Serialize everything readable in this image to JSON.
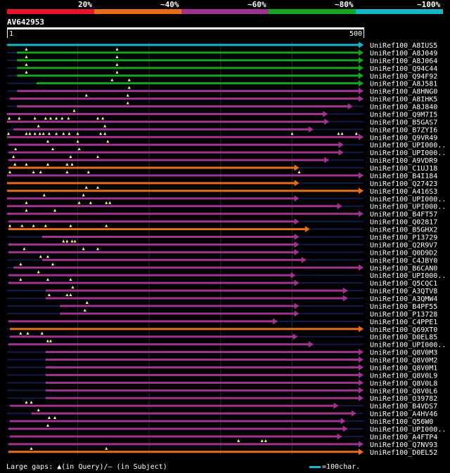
{
  "query": {
    "title": "AV642953",
    "start_label": "1",
    "end_label": "500"
  },
  "identity_legend": [
    {
      "label": "20%",
      "color": "#e5152e"
    },
    {
      "label": "~40%",
      "color": "#e56f18"
    },
    {
      "label": "~60%",
      "color": "#a03390"
    },
    {
      "label": "~80%",
      "color": "#16a51e"
    },
    {
      "label": "~100%",
      "color": "#17b7c7"
    }
  ],
  "footer": {
    "gaps_text": "Large gaps: ▲(in Query)/— (in Subject)",
    "scale_text": "=100char.",
    "scale_color": "#17b7c7"
  },
  "chart_data": {
    "type": "alignment-overview",
    "query_length": 500,
    "x_range": [
      1,
      500
    ],
    "hits": [
      {
        "name": "UniRef100_A8IUS5",
        "identity": "~100%",
        "start": 1,
        "end": 500,
        "marks": []
      },
      {
        "name": "UniRef100_A8J049",
        "identity": "~80%",
        "start": 15,
        "end": 500,
        "marks": [
          28,
          155
        ]
      },
      {
        "name": "UniRef100_A8J064",
        "identity": "~80%",
        "start": 15,
        "end": 500,
        "marks": [
          28,
          155
        ]
      },
      {
        "name": "UniRef100_Q94C44",
        "identity": "~80%",
        "start": 15,
        "end": 500,
        "marks": [
          28,
          155
        ]
      },
      {
        "name": "UniRef100_Q94F92",
        "identity": "~80%",
        "start": 15,
        "end": 500,
        "marks": [
          28,
          155
        ]
      },
      {
        "name": "UniRef100_A8J581",
        "identity": "~80%",
        "start": 42,
        "end": 500,
        "marks": [
          148,
          172
        ]
      },
      {
        "name": "UniRef100_A8HNG0",
        "identity": "~60%",
        "start": 15,
        "end": 500,
        "marks": [
          172
        ]
      },
      {
        "name": "UniRef100_A8IHK5",
        "identity": "~60%",
        "start": 5,
        "end": 500,
        "marks": [
          112,
          170
        ]
      },
      {
        "name": "UniRef100_A8J840",
        "identity": "~60%",
        "start": 15,
        "end": 485,
        "marks": [
          170
        ]
      },
      {
        "name": "UniRef100_Q9M7I5",
        "identity": "~60%",
        "start": 1,
        "end": 450,
        "marks": [
          95
        ]
      },
      {
        "name": "UniRef100_B5GAS7",
        "identity": "~60%",
        "start": 1,
        "end": 452,
        "marks": [
          4,
          18,
          40,
          55,
          62,
          70,
          78,
          87,
          128,
          135
        ]
      },
      {
        "name": "UniRef100_B7ZYI6",
        "identity": "~60%",
        "start": 10,
        "end": 430,
        "marks": [
          45,
          138
        ]
      },
      {
        "name": "UniRef100_Q9VR49",
        "identity": "~60%",
        "start": 1,
        "end": 500,
        "marks": [
          3,
          28,
          33,
          40,
          47,
          52,
          60,
          70,
          80,
          88,
          100,
          132,
          138,
          400,
          465,
          470,
          490
        ]
      },
      {
        "name": "UniRef100_UPI000..",
        "identity": "~60%",
        "start": 3,
        "end": 472,
        "marks": [
          58,
          100,
          142
        ]
      },
      {
        "name": "UniRef100_UPI000..",
        "identity": "~60%",
        "start": 3,
        "end": 472,
        "marks": [
          13,
          65,
          102
        ]
      },
      {
        "name": "UniRef100_A9VDR9",
        "identity": "~60%",
        "start": 3,
        "end": 452,
        "marks": [
          10,
          90,
          128
        ]
      },
      {
        "name": "UniRef100_C1UJ18",
        "identity": "~40%",
        "start": 3,
        "end": 410,
        "marks": [
          12,
          28,
          58,
          85,
          92
        ]
      },
      {
        "name": "UniRef100_B4I184",
        "identity": "~60%",
        "start": 1,
        "end": 500,
        "marks": [
          5,
          38,
          48,
          85,
          115,
          410
        ]
      },
      {
        "name": "UniRef100_Q27423",
        "identity": "~40%",
        "start": 1,
        "end": 410,
        "marks": []
      },
      {
        "name": "UniRef100_A416S3",
        "identity": "~40%",
        "start": 1,
        "end": 500,
        "marks": [
          112,
          128
        ]
      },
      {
        "name": "UniRef100_UPI000..",
        "identity": "~60%",
        "start": 1,
        "end": 410,
        "marks": [
          53,
          108
        ]
      },
      {
        "name": "UniRef100_UPI000..",
        "identity": "~60%",
        "start": 1,
        "end": 470,
        "marks": [
          28,
          102,
          118,
          140,
          145
        ]
      },
      {
        "name": "UniRef100_B4FT57",
        "identity": "~60%",
        "start": 1,
        "end": 500,
        "marks": [
          28,
          68
        ]
      },
      {
        "name": "UniRef100_Q02817",
        "identity": "~60%",
        "start": 3,
        "end": 410,
        "marks": []
      },
      {
        "name": "UniRef100_B5GHX2",
        "identity": "~40%",
        "start": 3,
        "end": 425,
        "marks": [
          5,
          22,
          38,
          55,
          90,
          140
        ]
      },
      {
        "name": "UniRef100_P13729",
        "identity": "~60%",
        "start": 50,
        "end": 410,
        "marks": []
      },
      {
        "name": "UniRef100_Q2R9V7",
        "identity": "~60%",
        "start": 3,
        "end": 410,
        "marks": [
          80,
          85,
          92,
          96
        ]
      },
      {
        "name": "UniRef100_Q0D9D2",
        "identity": "~60%",
        "start": 3,
        "end": 410,
        "marks": [
          25,
          108,
          128
        ]
      },
      {
        "name": "UniRef100_C4JBY0",
        "identity": "~60%",
        "start": 50,
        "end": 420,
        "marks": [
          48,
          58
        ]
      },
      {
        "name": "UniRef100_B6CAN0",
        "identity": "~60%",
        "start": 10,
        "end": 500,
        "marks": [
          20,
          65
        ]
      },
      {
        "name": "UniRef100_UPI000..",
        "identity": "~60%",
        "start": 3,
        "end": 405,
        "marks": [
          45
        ]
      },
      {
        "name": "UniRef100_Q5CQC1",
        "identity": "~60%",
        "start": 3,
        "end": 410,
        "marks": [
          20,
          58,
          90
        ]
      },
      {
        "name": "UniRef100_A3QTV8",
        "identity": "~60%",
        "start": 55,
        "end": 478,
        "marks": [
          93
        ]
      },
      {
        "name": "UniRef100_A3QMW4",
        "identity": "~60%",
        "start": 55,
        "end": 478,
        "marks": [
          60,
          85,
          90
        ]
      },
      {
        "name": "UniRef100_B4PF55",
        "identity": "~60%",
        "start": 75,
        "end": 410,
        "marks": [
          113
        ]
      },
      {
        "name": "UniRef100_P13728",
        "identity": "~60%",
        "start": 75,
        "end": 410,
        "marks": [
          110
        ]
      },
      {
        "name": "UniRef100_C4PPE1",
        "identity": "~60%",
        "start": 3,
        "end": 380,
        "marks": []
      },
      {
        "name": "UniRef100_Q69XT0",
        "identity": "~40%",
        "start": 5,
        "end": 500,
        "marks": []
      },
      {
        "name": "UniRef100_D0EL85",
        "identity": "~60%",
        "start": 5,
        "end": 408,
        "marks": [
          20,
          30,
          50
        ]
      },
      {
        "name": "UniRef100_UPI000..",
        "identity": "~60%",
        "start": 3,
        "end": 430,
        "marks": [
          58,
          62
        ]
      },
      {
        "name": "UniRef100_Q8V0M3",
        "identity": "~60%",
        "start": 55,
        "end": 500,
        "marks": []
      },
      {
        "name": "UniRef100_Q8V0M2",
        "identity": "~60%",
        "start": 55,
        "end": 500,
        "marks": []
      },
      {
        "name": "UniRef100_Q8V0M1",
        "identity": "~60%",
        "start": 55,
        "end": 500,
        "marks": []
      },
      {
        "name": "UniRef100_Q8V0L9",
        "identity": "~60%",
        "start": 55,
        "end": 500,
        "marks": []
      },
      {
        "name": "UniRef100_Q8V0L8",
        "identity": "~60%",
        "start": 55,
        "end": 500,
        "marks": []
      },
      {
        "name": "UniRef100_Q8V0L6",
        "identity": "~60%",
        "start": 55,
        "end": 500,
        "marks": []
      },
      {
        "name": "UniRef100_O39782",
        "identity": "~60%",
        "start": 55,
        "end": 500,
        "marks": []
      },
      {
        "name": "UniRef100_B4VDS7",
        "identity": "~60%",
        "start": 5,
        "end": 465,
        "marks": [
          28,
          35
        ]
      },
      {
        "name": "UniRef100_A4HV46",
        "identity": "~60%",
        "start": 35,
        "end": 490,
        "marks": [
          45
        ]
      },
      {
        "name": "UniRef100_Q56W0",
        "identity": "~60%",
        "start": 5,
        "end": 475,
        "marks": [
          60,
          68
        ]
      },
      {
        "name": "UniRef100_UPI000..",
        "identity": "~60%",
        "start": 3,
        "end": 478,
        "marks": [
          58
        ]
      },
      {
        "name": "UniRef100_A4FTP4",
        "identity": "~60%",
        "start": 5,
        "end": 470,
        "marks": []
      },
      {
        "name": "UniRef100_Q7NV93",
        "identity": "~60%",
        "start": 3,
        "end": 500,
        "marks": [
          325,
          358,
          363
        ]
      },
      {
        "name": "UniRef100_D0EL52",
        "identity": "~40%",
        "start": 3,
        "end": 500,
        "marks": [
          35,
          140
        ]
      }
    ]
  }
}
